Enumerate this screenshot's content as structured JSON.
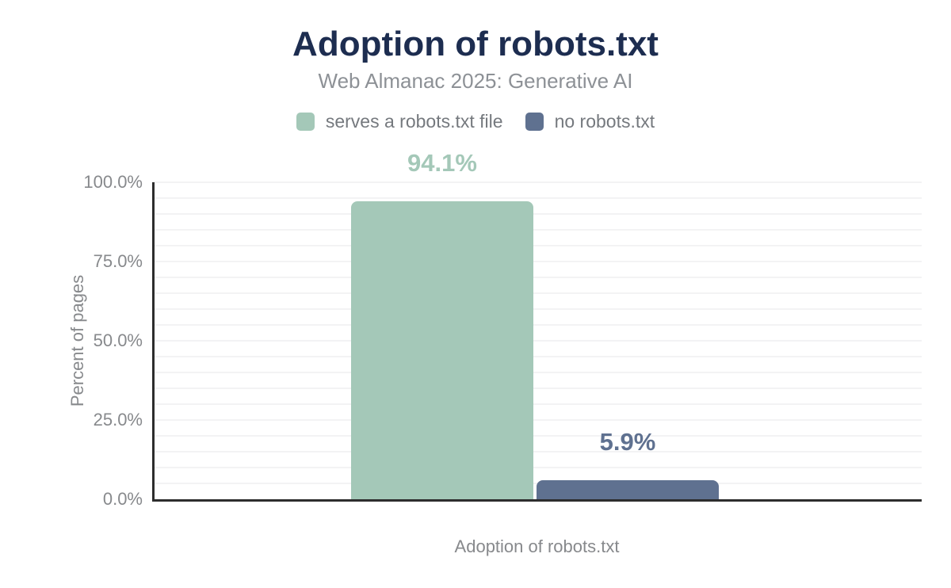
{
  "chart": {
    "title": "Adoption of robots.txt",
    "subtitle": "Web Almanac 2025: Generative AI",
    "x_axis_label": "Adoption of robots.txt",
    "y_axis_label": "Percent of pages"
  },
  "legend": {
    "items": [
      {
        "label": "serves a robots.txt file",
        "color": "#a4c8b8"
      },
      {
        "label": "no robots.txt",
        "color": "#5f7190"
      }
    ]
  },
  "chart_data": {
    "type": "bar",
    "title": "Adoption of robots.txt",
    "subtitle": "Web Almanac 2025: Generative AI",
    "categories": [
      "Adoption of robots.txt"
    ],
    "series": [
      {
        "name": "serves a robots.txt file",
        "values": [
          94.1
        ],
        "color": "#a4c8b8",
        "data_labels": [
          "94.1%"
        ]
      },
      {
        "name": "no robots.txt",
        "values": [
          5.9
        ],
        "color": "#5f7190",
        "data_labels": [
          "5.9%"
        ]
      }
    ],
    "xlabel": "Adoption of robots.txt",
    "ylabel": "Percent of pages",
    "ylim": [
      0,
      100
    ],
    "yticks": [
      {
        "value": 0,
        "label": "0.0%"
      },
      {
        "value": 25,
        "label": "25.0%"
      },
      {
        "value": 50,
        "label": "50.0%"
      },
      {
        "value": 75,
        "label": "75.0%"
      },
      {
        "value": 100,
        "label": "100.0%"
      }
    ],
    "grid": {
      "minor_step": 5,
      "color": "#f3f3f4",
      "visible": true
    },
    "legend_position": "top"
  },
  "colors": {
    "title": "#1d2d50",
    "subtitle": "#8d9196",
    "axis_text": "#87898c",
    "axis_line": "#2d2d2d",
    "background": "#ffffff"
  }
}
